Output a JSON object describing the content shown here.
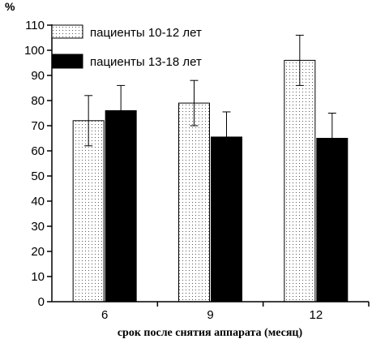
{
  "chart_data": {
    "type": "bar",
    "title": "",
    "ylabel_unit": "%",
    "xlabel": "срок после снятия аппарата (месяц)",
    "categories": [
      "6",
      "9",
      "12"
    ],
    "ylim": [
      0,
      110
    ],
    "yticks": [
      0,
      10,
      20,
      30,
      40,
      50,
      60,
      70,
      80,
      90,
      100,
      110
    ],
    "grid": false,
    "legend_position": "top-left",
    "series": [
      {
        "name": "пациенты 10-12 лет",
        "fill": "dotted",
        "color": "#ffffff",
        "values": [
          72,
          79,
          96
        ],
        "errors": [
          10,
          9,
          10
        ]
      },
      {
        "name": "пациенты 13-18 лет",
        "fill": "solid",
        "color": "#000000",
        "values": [
          76,
          65.5,
          65
        ],
        "errors": [
          10,
          10,
          10
        ]
      }
    ]
  }
}
